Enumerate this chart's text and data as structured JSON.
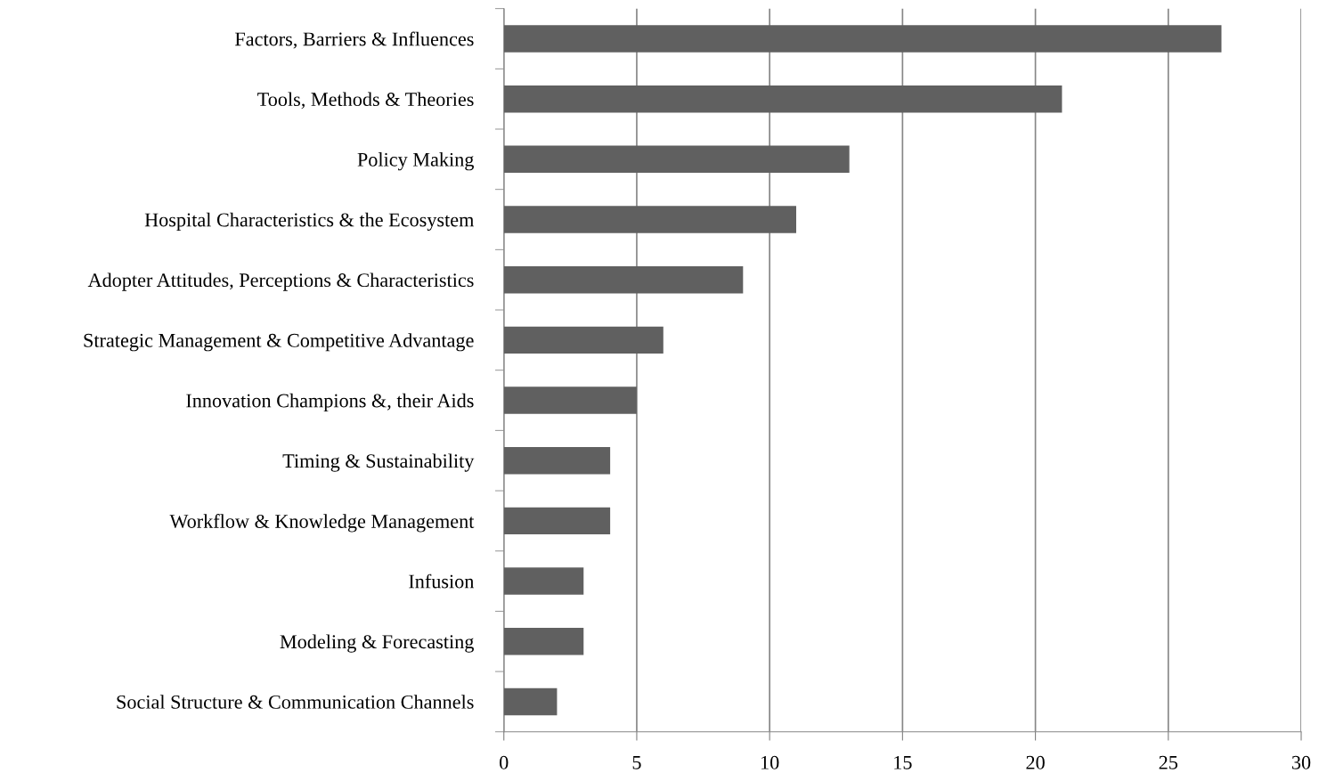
{
  "chart_data": {
    "type": "bar",
    "orientation": "horizontal",
    "categories": [
      "Factors, Barriers & Influences",
      "Tools, Methods & Theories",
      "Policy Making",
      "Hospital Characteristics & the Ecosystem",
      "Adopter Attitudes, Perceptions & Characteristics",
      "Strategic Management & Competitive Advantage",
      "Innovation Champions &, their Aids",
      "Timing & Sustainability",
      "Workflow & Knowledge Management",
      "Infusion",
      "Modeling & Forecasting",
      "Social Structure & Communication Channels"
    ],
    "values": [
      27,
      21,
      13,
      11,
      9,
      6,
      5,
      4,
      4,
      3,
      3,
      2
    ],
    "color": "#606060",
    "xlim": [
      0,
      30
    ],
    "xticks": [
      0,
      5,
      10,
      15,
      20,
      25,
      30
    ],
    "grid": "x"
  }
}
